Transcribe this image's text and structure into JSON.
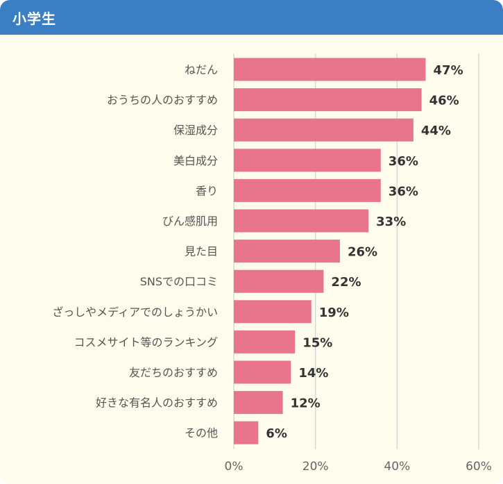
{
  "header": {
    "title": "小学生"
  },
  "chart_data": {
    "type": "bar",
    "orientation": "horizontal",
    "categories": [
      "ねだん",
      "おうちの人のおすすめ",
      "保湿成分",
      "美白成分",
      "香り",
      "びん感肌用",
      "見た目",
      "SNSでの口コミ",
      "ざっしやメディアでのしょうかい",
      "コスメサイト等のランキング",
      "友だちのおすすめ",
      "好きな有名人のおすすめ",
      "その他"
    ],
    "values": [
      47,
      46,
      44,
      36,
      36,
      33,
      26,
      22,
      19,
      15,
      14,
      12,
      6
    ],
    "value_labels": [
      "47%",
      "46%",
      "44%",
      "36%",
      "36%",
      "33%",
      "26%",
      "22%",
      "19%",
      "15%",
      "14%",
      "12%",
      "6%"
    ],
    "xlim": [
      0,
      60
    ],
    "ticks": [
      0,
      20,
      40,
      60
    ],
    "tick_labels": [
      "0%",
      "20%",
      "40%",
      "60%"
    ],
    "grid": true,
    "bar_color": "#e8758c",
    "grid_color": "#d8d8d8"
  }
}
